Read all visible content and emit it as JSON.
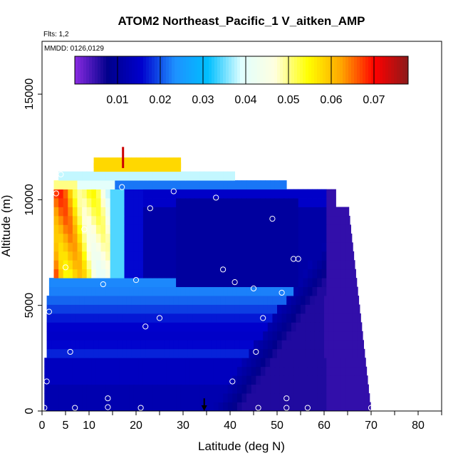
{
  "chart_data": {
    "type": "heatmap",
    "title": "ATOM2 Northeast_Pacific_1 V_aitken_AMP",
    "flights_label": "Flts: 1,2",
    "dates_label": "MMDD: 0126,0129",
    "xlabel": "Latitude (deg N)",
    "ylabel": "Altitude (m)",
    "xlim": [
      0,
      85
    ],
    "ylim": [
      0,
      17500
    ],
    "xticks": [
      "0",
      "5",
      "10",
      "20",
      "30",
      "40",
      "50",
      "60",
      "70",
      "80"
    ],
    "xtick_values": [
      0,
      5,
      10,
      20,
      30,
      40,
      50,
      60,
      70,
      80
    ],
    "yticks": [
      "0",
      "5000",
      "10000",
      "15000"
    ],
    "ytick_values": [
      0,
      5000,
      10000,
      15000
    ],
    "colorbar": {
      "min": 0.0,
      "max": 0.078,
      "ticks": [
        "0.01",
        "0.02",
        "0.03",
        "0.04",
        "0.05",
        "0.06",
        "0.07"
      ],
      "tick_values": [
        0.01,
        0.02,
        0.03,
        0.04,
        0.05,
        0.06,
        0.07
      ],
      "colors": [
        "#8a2be2",
        "#00008b",
        "#0000cd",
        "#1e90ff",
        "#00bfff",
        "#e0ffff",
        "#ffffe0",
        "#ffff00",
        "#ffa500",
        "#ff0000",
        "#8b1a1a"
      ]
    },
    "marker_latitude": 34.5,
    "sample_points": [
      {
        "lat": 0.5,
        "alt": 150
      },
      {
        "lat": 7,
        "alt": 150
      },
      {
        "lat": 14,
        "alt": 180
      },
      {
        "lat": 21,
        "alt": 150
      },
      {
        "lat": 14,
        "alt": 600
      },
      {
        "lat": 1,
        "alt": 1400
      },
      {
        "lat": 6,
        "alt": 2800
      },
      {
        "lat": 1.5,
        "alt": 4700
      },
      {
        "lat": 22,
        "alt": 4000
      },
      {
        "lat": 25,
        "alt": 4400
      },
      {
        "lat": 13,
        "alt": 6000
      },
      {
        "lat": 20,
        "alt": 6200
      },
      {
        "lat": 5,
        "alt": 6800
      },
      {
        "lat": 9,
        "alt": 8600
      },
      {
        "lat": 3,
        "alt": 10300
      },
      {
        "lat": 4,
        "alt": 11200
      },
      {
        "lat": 17,
        "alt": 10600
      },
      {
        "lat": 23,
        "alt": 9600
      },
      {
        "lat": 28,
        "alt": 10400
      },
      {
        "lat": 37,
        "alt": 10100
      },
      {
        "lat": 49,
        "alt": 9100
      },
      {
        "lat": 63.5,
        "alt": 10400
      },
      {
        "lat": 38.5,
        "alt": 6700
      },
      {
        "lat": 41,
        "alt": 6100
      },
      {
        "lat": 45,
        "alt": 5800
      },
      {
        "lat": 51,
        "alt": 5600
      },
      {
        "lat": 53.5,
        "alt": 7200
      },
      {
        "lat": 54.5,
        "alt": 7200
      },
      {
        "lat": 47,
        "alt": 4400
      },
      {
        "lat": 45.5,
        "alt": 2800
      },
      {
        "lat": 40.5,
        "alt": 1400
      },
      {
        "lat": 52,
        "alt": 600
      },
      {
        "lat": 46,
        "alt": 150
      },
      {
        "lat": 52,
        "alt": 150
      },
      {
        "lat": 56.5,
        "alt": 150
      },
      {
        "lat": 70,
        "alt": 150
      }
    ]
  }
}
